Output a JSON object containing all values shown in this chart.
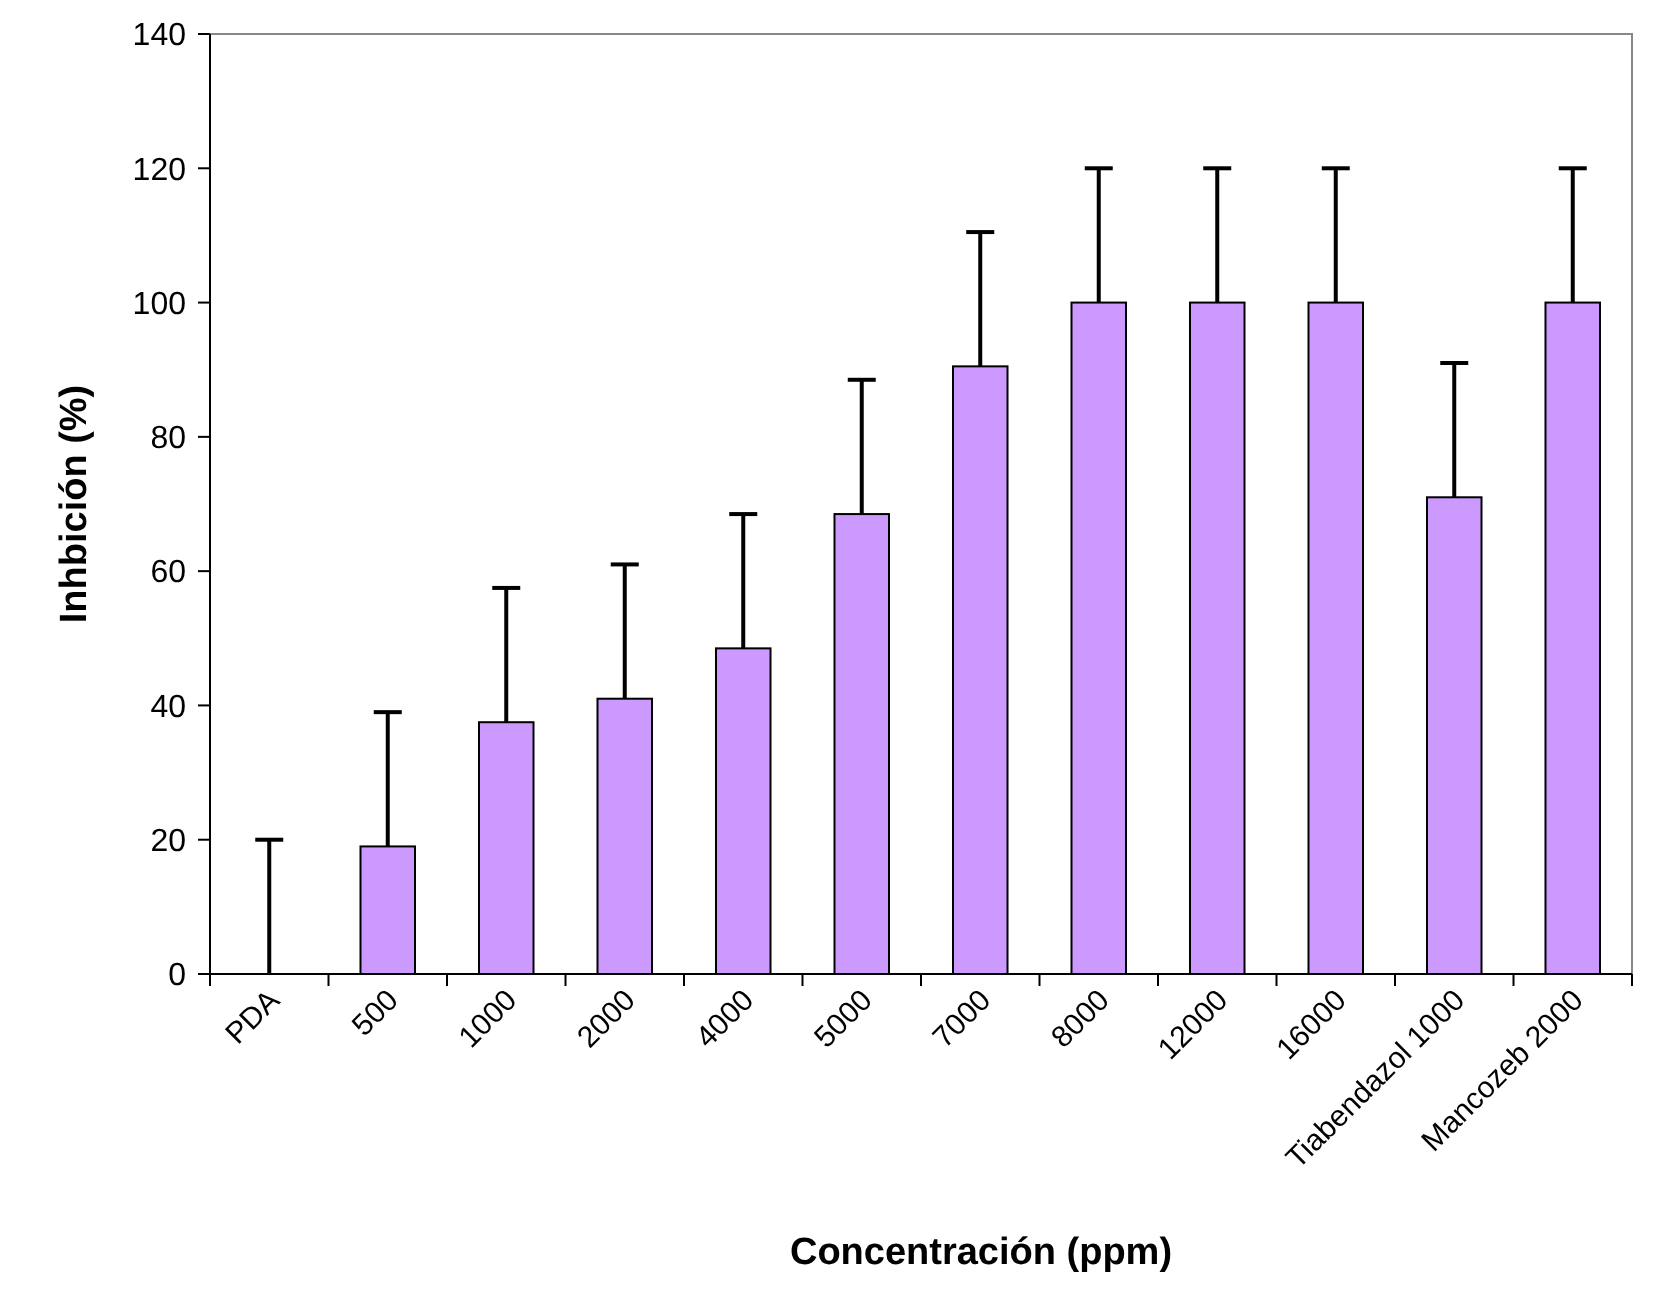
{
  "chart_data": {
    "type": "bar",
    "xlabel": "Concentración (ppm)",
    "ylabel": "Inhbición (%)",
    "categories": [
      "PDA",
      "500",
      "1000",
      "2000",
      "4000",
      "5000",
      "7000",
      "8000",
      "12000",
      "16000",
      "Tiabendazol 1000",
      "Mancozeb 2000"
    ],
    "values": [
      0,
      19,
      37.5,
      41,
      48.5,
      68.5,
      90.5,
      100,
      100,
      100,
      71,
      100
    ],
    "errors": [
      [
        0,
        20
      ],
      [
        19,
        39
      ],
      [
        37.5,
        57.5
      ],
      [
        41,
        61
      ],
      [
        48.5,
        68.5
      ],
      [
        68.5,
        88.5
      ],
      [
        90.5,
        110.5
      ],
      [
        100,
        120
      ],
      [
        100,
        120
      ],
      [
        100,
        120
      ],
      [
        71,
        91
      ],
      [
        100,
        120
      ]
    ],
    "color": "#cc99ff",
    "ylim": [
      0,
      140
    ],
    "yticks": [
      0,
      20,
      40,
      60,
      80,
      100,
      120,
      140
    ],
    "grid": false
  }
}
